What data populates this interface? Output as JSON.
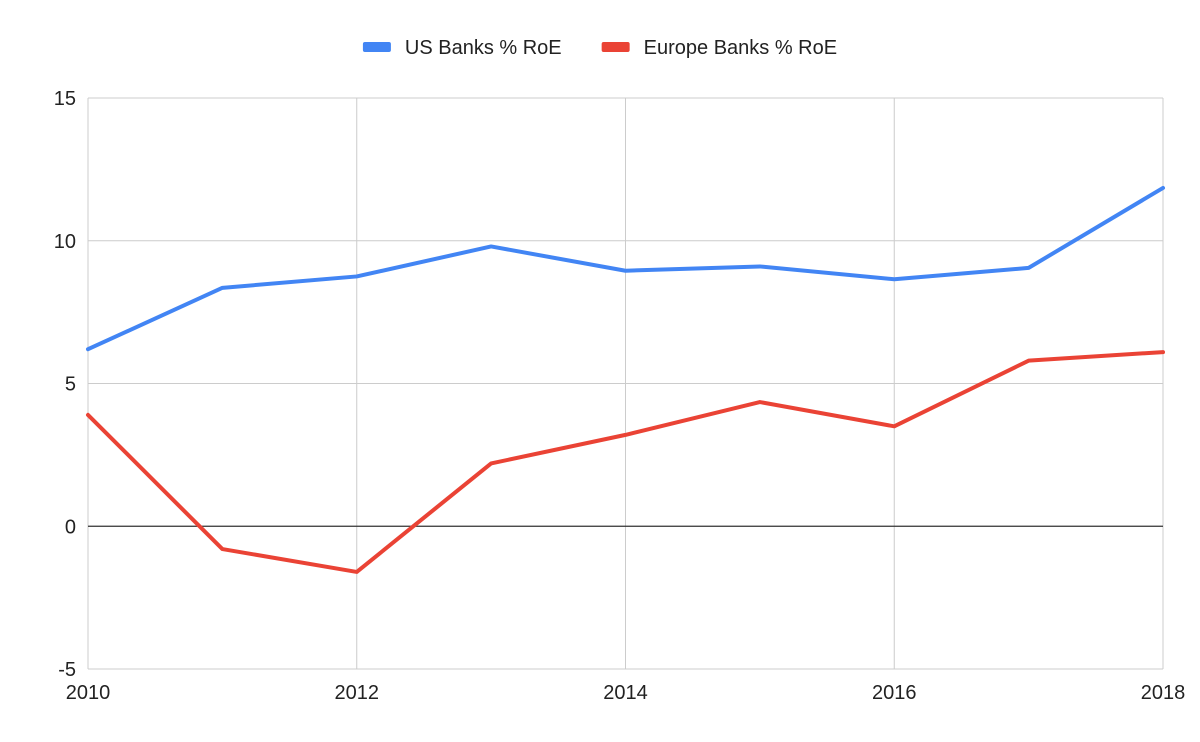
{
  "chart_data": {
    "type": "line",
    "x": [
      2010,
      2011,
      2012,
      2013,
      2014,
      2015,
      2016,
      2017,
      2018
    ],
    "series": [
      {
        "name": "US Banks % RoE",
        "color": "#4285f4",
        "values": [
          6.2,
          8.35,
          8.75,
          9.8,
          8.95,
          9.1,
          8.65,
          9.05,
          11.85
        ]
      },
      {
        "name": "Europe Banks % RoE",
        "color": "#ea4335",
        "values": [
          3.9,
          -0.8,
          -1.6,
          2.2,
          3.2,
          4.35,
          3.5,
          5.8,
          6.1
        ]
      }
    ],
    "xlim": [
      2010,
      2018
    ],
    "ylim": [
      -5,
      15
    ],
    "xticks": [
      "2010",
      "2012",
      "2014",
      "2016",
      "2018"
    ],
    "yticks": [
      "15",
      "10",
      "5",
      "0",
      "-5"
    ],
    "grid": true,
    "legend_position": "top-center",
    "title": "",
    "xlabel": "",
    "ylabel": ""
  }
}
